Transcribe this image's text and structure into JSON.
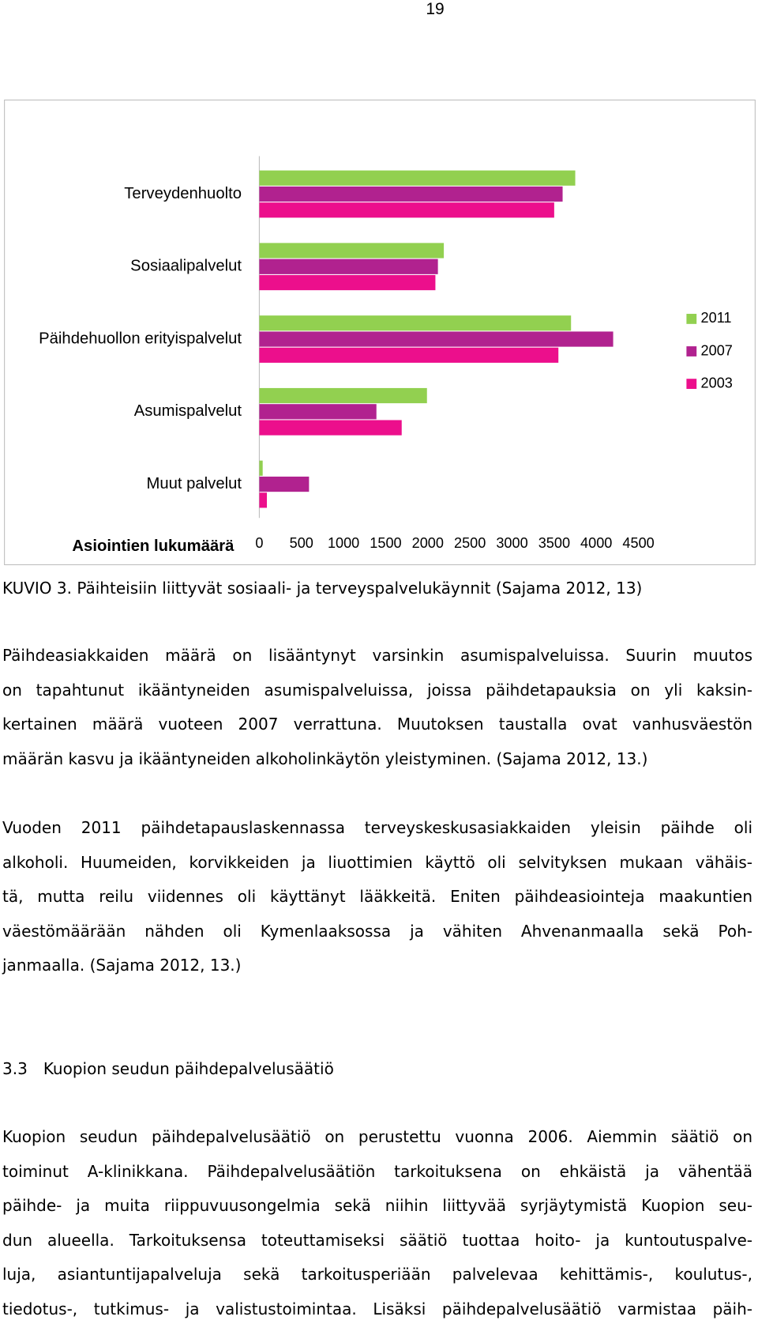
{
  "page_number": "19",
  "chart_data": {
    "type": "bar",
    "orientation": "horizontal",
    "xlabel": "Asiointien lukumäärä",
    "categories": [
      "Terveydenhuolto",
      "Sosiaalipalvelut",
      "Päihdehuollon erityispalvelut",
      "Asumispalvelut",
      "Muut palvelut"
    ],
    "series": [
      {
        "name": "2011",
        "color": "#92d050",
        "values": [
          3750,
          2190,
          3700,
          1990,
          40
        ]
      },
      {
        "name": "2007",
        "color": "#b1228f",
        "values": [
          3600,
          2120,
          4200,
          1390,
          590
        ]
      },
      {
        "name": "2003",
        "color": "#ec0f8c",
        "values": [
          3500,
          2090,
          3550,
          1690,
          90
        ]
      }
    ],
    "xlim": [
      0,
      4500
    ],
    "xticks": [
      0,
      500,
      1000,
      1500,
      2000,
      2500,
      3000,
      3500,
      4000,
      4500
    ],
    "legend": "right"
  },
  "caption": "KUVIO 3. Päihteisiin liittyvät sosiaali- ja terveyspalvelukäynnit (Sajama 2012, 13)",
  "paragraphs": [
    {
      "lines": [
        "Päihdeasiakkaiden määrä on lisääntynyt varsinkin asumispalveluissa. Suurin muutos",
        "on tapahtunut ikääntyneiden asumispalveluissa, joissa päihdetapauksia on yli kaksin-",
        "kertainen määrä vuoteen 2007 verrattuna. Muutoksen taustalla ovat vanhusväestön",
        "määrän kasvu ja ikääntyneiden alkoholinkäytön yleistyminen. (Sajama 2012, 13.)"
      ]
    },
    {
      "lines": [
        "Vuoden 2011 päihdetapauslaskennassa terveyskeskusasiakkaiden yleisin päihde oli",
        "alkoholi. Huumeiden, korvikkeiden ja liuottimien käyttö oli selvityksen mukaan vähäis-",
        "tä, mutta reilu viidennes oli käyttänyt lääkkeitä. Eniten päihdeasiointeja maakuntien",
        "väestömäärään nähden oli Kymenlaaksossa ja vähiten Ahvenanmaalla sekä Poh-",
        "janmaalla. (Sajama 2012, 13.)"
      ]
    },
    {
      "lines": [
        "Kuopion seudun päihdepalvelusäätiö on perustettu vuonna 2006. Aiemmin säätiö on",
        "toiminut A-klinikkana. Päihdepalvelusäätiön tarkoituksena on ehkäistä ja vähentää",
        "päihde- ja muita riippuvuusongelmia sekä niihin liittyvää syrjäytymistä Kuopion seu-",
        "dun alueella. Tarkoituksensa toteuttamiseksi säätiö tuottaa hoito- ja kuntoutuspalve-",
        "luja, asiantuntijapalveluja sekä tarkoitusperiään palvelevaa kehittämis-, koulutus-,",
        "tiedotus-, tutkimus- ja valistustoimintaa. Lisäksi päihdepalvelusäätiö varmistaa päih-"
      ]
    }
  ],
  "heading": {
    "number": "3.3",
    "title": "Kuopion seudun päihdepalvelusäätiö"
  }
}
